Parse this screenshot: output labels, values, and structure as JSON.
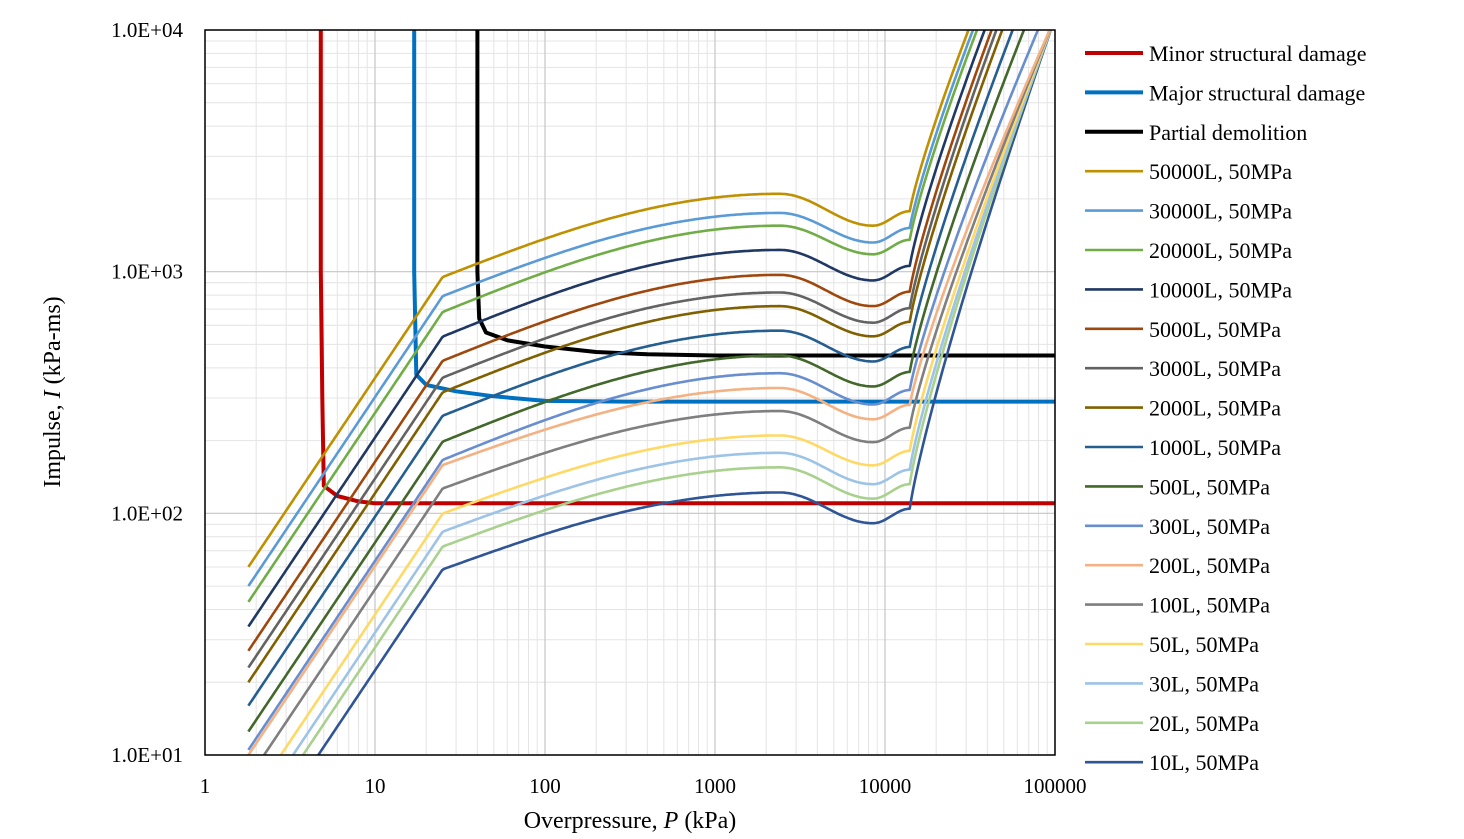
{
  "chart_data": {
    "type": "line",
    "title": "",
    "xlabel_prefix": "Overpressure, ",
    "xlabel_var": "P",
    "xlabel_suffix": " (kPa)",
    "ylabel_prefix": "Impulse, ",
    "ylabel_var": "I",
    "ylabel_suffix": " (kPa-ms)",
    "x_scale": "log",
    "y_scale": "log",
    "xlim": [
      1,
      100000
    ],
    "ylim": [
      10,
      10000
    ],
    "x_ticks": [
      1,
      10,
      100,
      1000,
      10000,
      100000
    ],
    "x_tick_labels": [
      "1",
      "10",
      "100",
      "1000",
      "10000",
      "100000"
    ],
    "y_ticks": [
      10,
      100,
      1000,
      10000
    ],
    "y_tick_labels": [
      "1.0E+01",
      "1.0E+02",
      "1.0E+03",
      "1.0E+04"
    ],
    "grid": true,
    "legend_position": "right",
    "damage_series": [
      {
        "name": "Minor structural damage",
        "color": "#c00000",
        "x": [
          4.8,
          4.8,
          4.9,
          5.0,
          6.0,
          8.0,
          10,
          20,
          100,
          1000,
          100000
        ],
        "y": [
          10000,
          1000,
          300,
          130,
          118,
          112,
          110,
          110,
          110,
          110,
          110
        ]
      },
      {
        "name": "Major structural damage",
        "color": "#0070c0",
        "x": [
          17,
          17,
          17.5,
          20,
          30,
          50,
          100,
          300,
          1000,
          100000
        ],
        "y": [
          10000,
          1000,
          375,
          340,
          320,
          305,
          292,
          290,
          290,
          290
        ]
      },
      {
        "name": "Partial demolition",
        "color": "#000000",
        "x": [
          40,
          40,
          41,
          45,
          60,
          100,
          200,
          400,
          1000,
          100000
        ],
        "y": [
          10000,
          1000,
          640,
          560,
          520,
          490,
          465,
          455,
          450,
          450
        ]
      }
    ],
    "vessel_series": [
      {
        "name": "50000L, 50MPa",
        "color": "#bf9000",
        "y_at_2": 60,
        "hump": 2100,
        "dip": 1550,
        "x_end": 33000
      },
      {
        "name": "30000L, 50MPa",
        "color": "#5b9bd5",
        "y_at_2": 50,
        "hump": 1750,
        "dip": 1320,
        "x_end": 35000
      },
      {
        "name": "20000L, 50MPa",
        "color": "#70ad47",
        "y_at_2": 43,
        "hump": 1550,
        "dip": 1180,
        "x_end": 37000
      },
      {
        "name": "10000L, 50MPa",
        "color": "#203864",
        "y_at_2": 34,
        "hump": 1230,
        "dip": 920,
        "x_end": 41000
      },
      {
        "name": "5000L, 50MPa",
        "color": "#9e480e",
        "y_at_2": 27,
        "hump": 970,
        "dip": 720,
        "x_end": 45000
      },
      {
        "name": "3000L, 50MPa",
        "color": "#636363",
        "y_at_2": 23,
        "hump": 820,
        "dip": 615,
        "x_end": 48000
      },
      {
        "name": "2000L, 50MPa",
        "color": "#806000",
        "y_at_2": 20,
        "hump": 720,
        "dip": 540,
        "x_end": 52000
      },
      {
        "name": "1000L, 50MPa",
        "color": "#255e91",
        "y_at_2": 16,
        "hump": 570,
        "dip": 425,
        "x_end": 60000
      },
      {
        "name": "500L, 50MPa",
        "color": "#43682b",
        "y_at_2": 12.5,
        "hump": 450,
        "dip": 335,
        "x_end": 70000
      },
      {
        "name": "300L, 50MPa",
        "color": "#698ed0",
        "y_at_2": 10.5,
        "hump": 380,
        "dip": 282,
        "x_end": 85000
      },
      {
        "name": "200L, 50MPa",
        "color": "#f4b183",
        "y_at_2": 10,
        "hump": 330,
        "dip": 245,
        "x_end": 100000
      },
      {
        "name": "100L, 50MPa",
        "color": "#7f7f7f",
        "y_at_2": 8,
        "hump": 265,
        "dip": 197,
        "x_end": 100000
      },
      {
        "name": "50L, 50MPa",
        "color": "#ffd966",
        "y_at_2": 6.3,
        "hump": 210,
        "dip": 158,
        "x_end": 100000
      },
      {
        "name": "30L, 50MPa",
        "color": "#9dc3e6",
        "y_at_2": 5.3,
        "hump": 178,
        "dip": 132,
        "x_end": 100000
      },
      {
        "name": "20L, 50MPa",
        "color": "#a9d18e",
        "y_at_2": 4.6,
        "hump": 155,
        "dip": 115,
        "x_end": 100000
      },
      {
        "name": "10L, 50MPa",
        "color": "#2f5597",
        "y_at_2": 3.7,
        "hump": 122,
        "dip": 91,
        "x_end": 100000
      }
    ]
  }
}
